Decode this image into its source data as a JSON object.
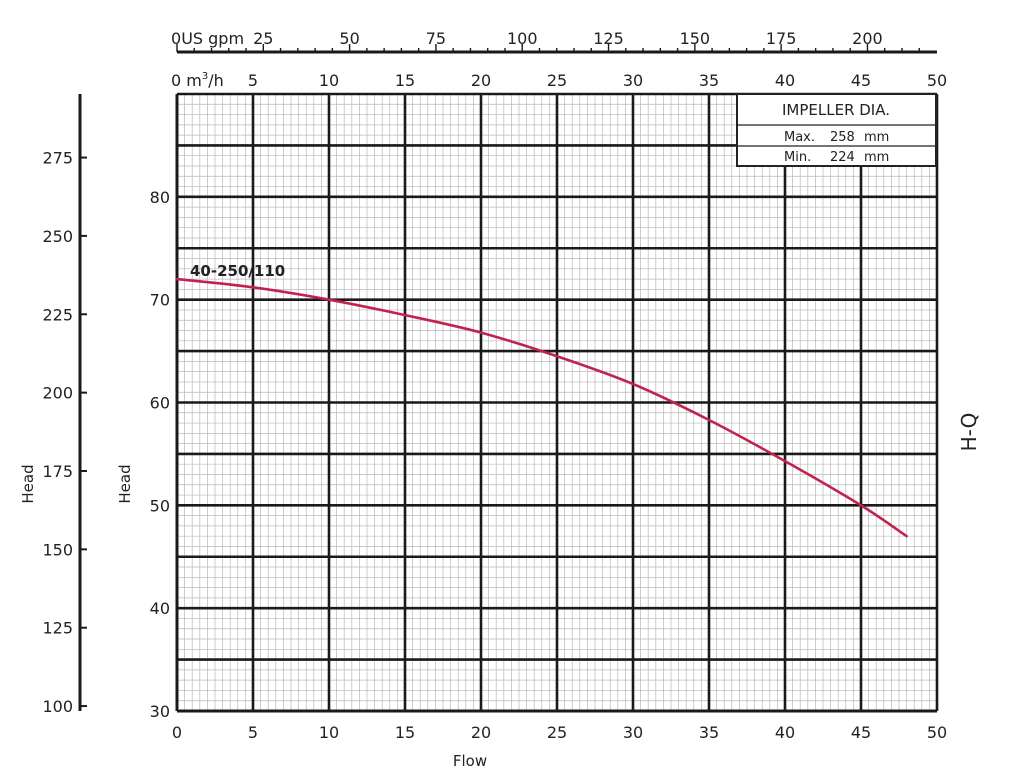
{
  "chart_data": {
    "type": "line",
    "title": "",
    "xlabel": "Flow",
    "ylabel": "Head",
    "ylabel_outer": "Head",
    "side_label": "H-Q",
    "xlim": [
      0,
      50
    ],
    "ylim": [
      30,
      90
    ],
    "x_ticks": [
      0,
      5,
      10,
      15,
      20,
      25,
      30,
      35,
      40,
      45,
      50
    ],
    "y_ticks": [
      30,
      40,
      50,
      60,
      70,
      80
    ],
    "top_axis_m3h": {
      "unit": "m³/h",
      "unit_prefix": "0",
      "unit_base": "m",
      "unit_sup": "3",
      "unit_suffix": "/h",
      "ticks": [
        5,
        10,
        15,
        20,
        25,
        30,
        35,
        40,
        45,
        50
      ]
    },
    "top_axis_gpm": {
      "unit": "US gpm",
      "unit_prefix": "0",
      "ticks": [
        25,
        50,
        75,
        100,
        125,
        150,
        175,
        200
      ]
    },
    "left_axis_ft": {
      "ticks": [
        100,
        125,
        150,
        175,
        200,
        225,
        250,
        275
      ]
    },
    "series": [
      {
        "name": "40-250/110",
        "color": "#c0244e",
        "x": [
          0,
          5,
          10,
          15,
          20,
          25,
          30,
          35,
          40,
          45,
          48
        ],
        "y": [
          72,
          71.2,
          70.0,
          68.5,
          66.8,
          64.5,
          61.8,
          58.3,
          54.3,
          50.0,
          47.0
        ]
      }
    ],
    "legend": {
      "title": "IMPELLER DIA.",
      "rows": [
        {
          "label": "Max.",
          "value": "258",
          "unit": "mm"
        },
        {
          "label": "Min.",
          "value": "224",
          "unit": "mm"
        }
      ]
    }
  }
}
